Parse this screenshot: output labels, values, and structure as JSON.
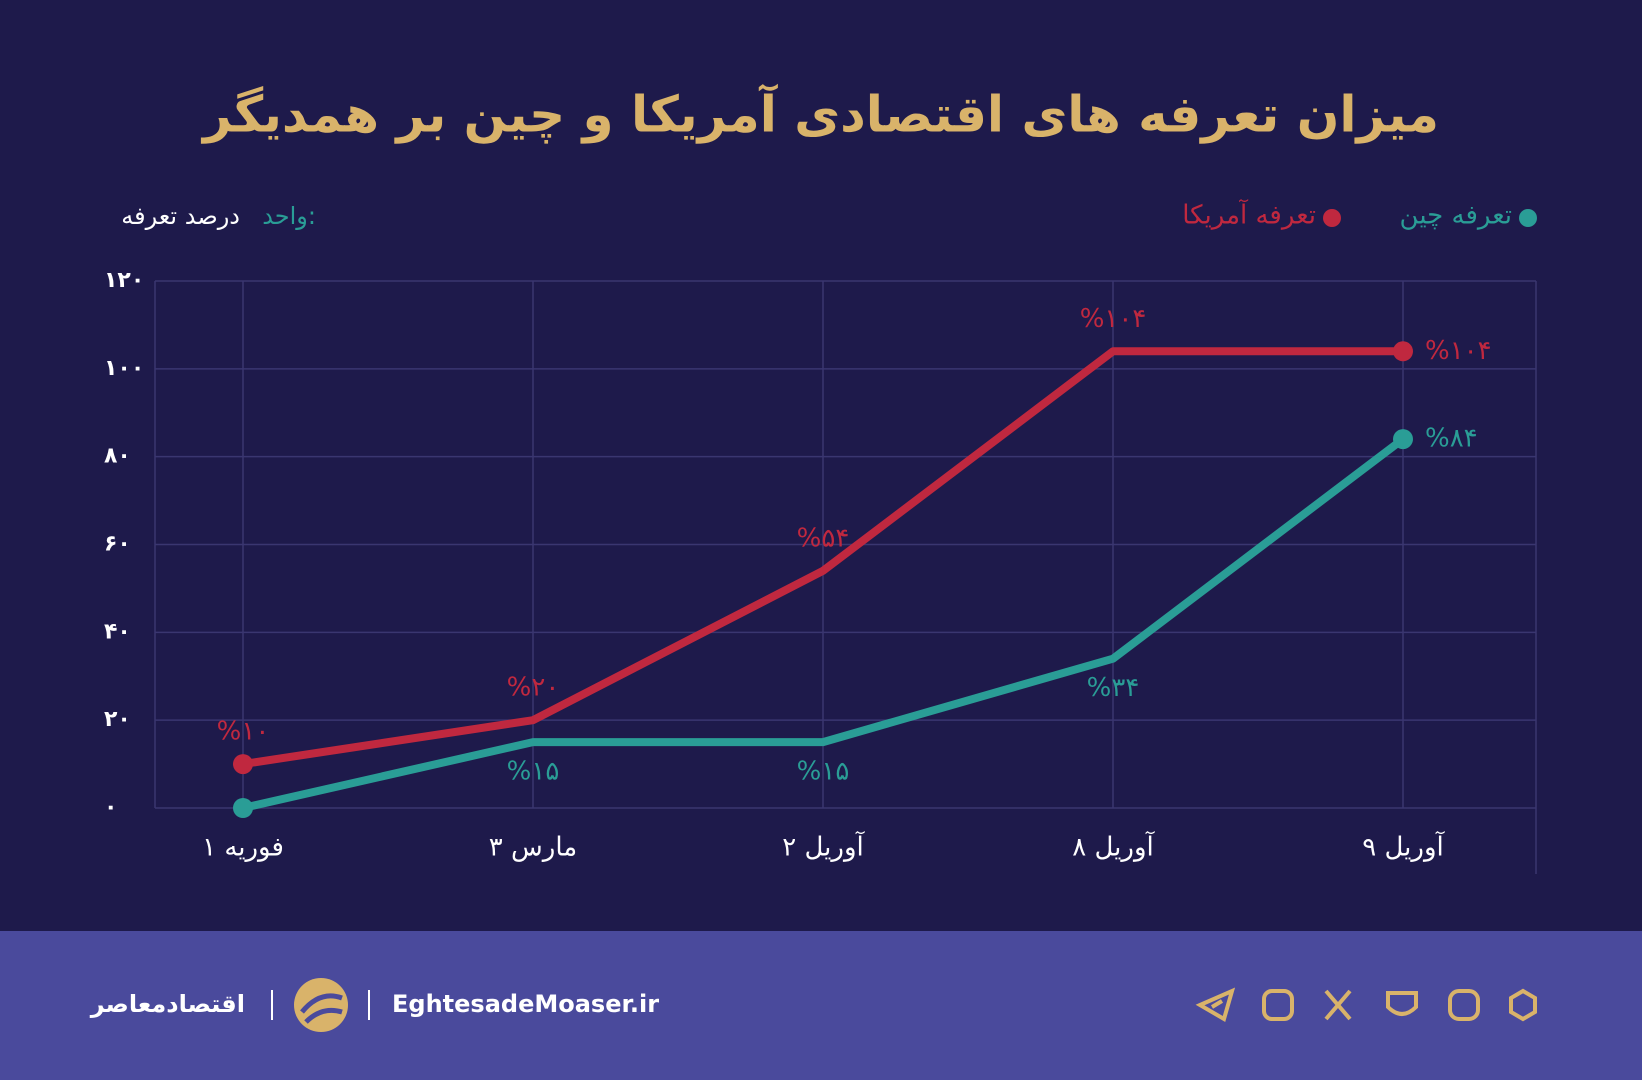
{
  "chart_data": {
    "type": "line",
    "title": "میزان تعرفه های اقتصادی آمریکا و چین بر همدیگر",
    "unit_label": "واحد:",
    "unit": "درصد تعرفه",
    "categories": [
      "۱ فوریه",
      "۳ مارس",
      "۲ آوریل",
      "۸ آوریل",
      "۹ آوریل"
    ],
    "series": [
      {
        "name": "تعرفه چین",
        "color": "#2a9d96",
        "values": [
          0,
          15,
          15,
          34,
          84
        ],
        "value_labels": [
          null,
          "%۱۵",
          "%۱۵",
          "%۳۴",
          "%۸۴"
        ]
      },
      {
        "name": "تعرفه آمریکا",
        "color": "#c0283f",
        "values": [
          10,
          20,
          54,
          104,
          104
        ],
        "value_labels": [
          "%۱۰",
          "%۲۰",
          "%۵۴",
          "%۱۰۴",
          "%۱۰۴"
        ]
      }
    ],
    "ylim": [
      0,
      120
    ],
    "yticks": [
      {
        "value": 0,
        "label": "۰"
      },
      {
        "value": 20,
        "label": "۲۰"
      },
      {
        "value": 40,
        "label": "۴۰"
      },
      {
        "value": 60,
        "label": "۶۰"
      },
      {
        "value": 80,
        "label": "۸۰"
      },
      {
        "value": 100,
        "label": "۱۰۰"
      },
      {
        "value": 120,
        "label": "۱۲۰"
      }
    ],
    "grid": true
  },
  "footer": {
    "brand": "اقتصادمعاصر",
    "site": "EghtesadeMoaser.ir"
  }
}
